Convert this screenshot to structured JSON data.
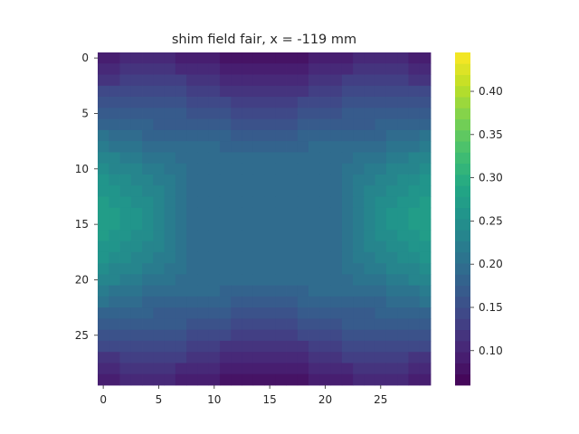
{
  "chart_data": {
    "type": "heatmap",
    "title": "shim field fair, x = -119 mm",
    "xlabel": "",
    "ylabel": "",
    "grid": false,
    "colormap": "viridis",
    "n_rows": 30,
    "n_cols": 30,
    "x_ticks": [
      "0",
      "5",
      "10",
      "15",
      "20",
      "25"
    ],
    "y_ticks": [
      "0",
      "5",
      "10",
      "15",
      "20",
      "25"
    ],
    "colorbar": {
      "range": [
        0.06,
        0.445
      ],
      "levels": 30,
      "ticks": [
        "0.10",
        "0.15",
        "0.20",
        "0.25",
        "0.30",
        "0.35",
        "0.40"
      ],
      "tick_values": [
        0.1,
        0.15,
        0.2,
        0.25,
        0.3,
        0.35,
        0.4
      ]
    },
    "values": [
      [
        0.092,
        0.096,
        0.101,
        0.105,
        0.109,
        0.106,
        0.102,
        0.098,
        0.094,
        0.09,
        0.086,
        0.083,
        0.08,
        0.077,
        0.075,
        0.075,
        0.077,
        0.08,
        0.083,
        0.086,
        0.09,
        0.094,
        0.098,
        0.102,
        0.106,
        0.109,
        0.105,
        0.101,
        0.096,
        0.092
      ],
      [
        0.108,
        0.109,
        0.112,
        0.115,
        0.118,
        0.118,
        0.115,
        0.111,
        0.107,
        0.103,
        0.099,
        0.096,
        0.093,
        0.091,
        0.089,
        0.089,
        0.091,
        0.093,
        0.096,
        0.099,
        0.103,
        0.107,
        0.111,
        0.115,
        0.118,
        0.118,
        0.115,
        0.112,
        0.109,
        0.108
      ],
      [
        0.123,
        0.124,
        0.125,
        0.126,
        0.128,
        0.129,
        0.128,
        0.125,
        0.121,
        0.117,
        0.113,
        0.109,
        0.106,
        0.104,
        0.103,
        0.103,
        0.104,
        0.106,
        0.109,
        0.113,
        0.117,
        0.121,
        0.125,
        0.128,
        0.129,
        0.128,
        0.126,
        0.125,
        0.124,
        0.123
      ],
      [
        0.139,
        0.139,
        0.139,
        0.139,
        0.14,
        0.141,
        0.141,
        0.139,
        0.135,
        0.131,
        0.127,
        0.123,
        0.12,
        0.118,
        0.117,
        0.117,
        0.118,
        0.12,
        0.123,
        0.127,
        0.131,
        0.135,
        0.139,
        0.141,
        0.141,
        0.14,
        0.139,
        0.139,
        0.139,
        0.139
      ],
      [
        0.154,
        0.154,
        0.153,
        0.152,
        0.151,
        0.152,
        0.153,
        0.152,
        0.149,
        0.145,
        0.141,
        0.137,
        0.134,
        0.132,
        0.131,
        0.131,
        0.132,
        0.134,
        0.137,
        0.141,
        0.145,
        0.149,
        0.152,
        0.153,
        0.152,
        0.151,
        0.152,
        0.153,
        0.154,
        0.154
      ],
      [
        0.17,
        0.169,
        0.167,
        0.165,
        0.163,
        0.163,
        0.164,
        0.164,
        0.162,
        0.159,
        0.155,
        0.151,
        0.148,
        0.146,
        0.145,
        0.145,
        0.146,
        0.148,
        0.151,
        0.155,
        0.159,
        0.162,
        0.164,
        0.164,
        0.163,
        0.163,
        0.165,
        0.167,
        0.169,
        0.17
      ],
      [
        0.186,
        0.184,
        0.181,
        0.178,
        0.176,
        0.175,
        0.175,
        0.175,
        0.175,
        0.172,
        0.169,
        0.165,
        0.162,
        0.16,
        0.159,
        0.159,
        0.16,
        0.162,
        0.165,
        0.169,
        0.172,
        0.175,
        0.175,
        0.175,
        0.175,
        0.176,
        0.178,
        0.181,
        0.184,
        0.186
      ],
      [
        0.202,
        0.199,
        0.196,
        0.192,
        0.188,
        0.186,
        0.185,
        0.185,
        0.185,
        0.184,
        0.181,
        0.178,
        0.175,
        0.173,
        0.172,
        0.172,
        0.173,
        0.175,
        0.178,
        0.181,
        0.184,
        0.185,
        0.185,
        0.185,
        0.186,
        0.188,
        0.192,
        0.196,
        0.199,
        0.202
      ],
      [
        0.216,
        0.213,
        0.209,
        0.205,
        0.201,
        0.197,
        0.194,
        0.193,
        0.192,
        0.192,
        0.19,
        0.188,
        0.186,
        0.184,
        0.183,
        0.183,
        0.184,
        0.186,
        0.188,
        0.19,
        0.192,
        0.192,
        0.193,
        0.194,
        0.197,
        0.201,
        0.205,
        0.209,
        0.213,
        0.216
      ],
      [
        0.23,
        0.227,
        0.222,
        0.217,
        0.212,
        0.207,
        0.203,
        0.199,
        0.197,
        0.196,
        0.195,
        0.194,
        0.192,
        0.191,
        0.191,
        0.191,
        0.191,
        0.192,
        0.194,
        0.195,
        0.196,
        0.197,
        0.199,
        0.203,
        0.207,
        0.212,
        0.217,
        0.222,
        0.227,
        0.23
      ],
      [
        0.242,
        0.239,
        0.234,
        0.228,
        0.222,
        0.216,
        0.211,
        0.205,
        0.2,
        0.197,
        0.196,
        0.195,
        0.194,
        0.194,
        0.194,
        0.194,
        0.194,
        0.194,
        0.195,
        0.196,
        0.197,
        0.2,
        0.205,
        0.211,
        0.216,
        0.222,
        0.228,
        0.234,
        0.239,
        0.242
      ],
      [
        0.253,
        0.249,
        0.244,
        0.238,
        0.231,
        0.224,
        0.216,
        0.208,
        0.201,
        0.197,
        0.195,
        0.194,
        0.194,
        0.194,
        0.194,
        0.194,
        0.194,
        0.194,
        0.194,
        0.195,
        0.197,
        0.201,
        0.208,
        0.216,
        0.224,
        0.231,
        0.238,
        0.244,
        0.249,
        0.253
      ],
      [
        0.261,
        0.257,
        0.252,
        0.246,
        0.238,
        0.229,
        0.219,
        0.209,
        0.201,
        0.196,
        0.194,
        0.193,
        0.193,
        0.193,
        0.193,
        0.193,
        0.193,
        0.193,
        0.193,
        0.194,
        0.196,
        0.201,
        0.209,
        0.219,
        0.229,
        0.238,
        0.246,
        0.252,
        0.257,
        0.261
      ],
      [
        0.267,
        0.263,
        0.258,
        0.251,
        0.242,
        0.231,
        0.22,
        0.209,
        0.2,
        0.195,
        0.193,
        0.192,
        0.192,
        0.192,
        0.192,
        0.192,
        0.192,
        0.192,
        0.192,
        0.193,
        0.195,
        0.2,
        0.209,
        0.22,
        0.231,
        0.242,
        0.251,
        0.258,
        0.263,
        0.267
      ],
      [
        0.27,
        0.267,
        0.261,
        0.253,
        0.243,
        0.232,
        0.22,
        0.209,
        0.2,
        0.195,
        0.192,
        0.191,
        0.191,
        0.191,
        0.191,
        0.191,
        0.191,
        0.191,
        0.191,
        0.192,
        0.195,
        0.2,
        0.209,
        0.22,
        0.232,
        0.243,
        0.253,
        0.261,
        0.267,
        0.27
      ],
      [
        0.27,
        0.267,
        0.261,
        0.253,
        0.243,
        0.232,
        0.22,
        0.209,
        0.2,
        0.195,
        0.192,
        0.191,
        0.191,
        0.191,
        0.191,
        0.191,
        0.191,
        0.191,
        0.191,
        0.192,
        0.195,
        0.2,
        0.209,
        0.22,
        0.232,
        0.243,
        0.253,
        0.261,
        0.267,
        0.27
      ],
      [
        0.267,
        0.263,
        0.258,
        0.251,
        0.242,
        0.231,
        0.22,
        0.209,
        0.2,
        0.195,
        0.193,
        0.192,
        0.192,
        0.192,
        0.192,
        0.192,
        0.192,
        0.192,
        0.192,
        0.193,
        0.195,
        0.2,
        0.209,
        0.22,
        0.231,
        0.242,
        0.251,
        0.258,
        0.263,
        0.267
      ],
      [
        0.261,
        0.257,
        0.252,
        0.246,
        0.238,
        0.229,
        0.219,
        0.209,
        0.201,
        0.196,
        0.194,
        0.193,
        0.193,
        0.193,
        0.193,
        0.193,
        0.193,
        0.193,
        0.193,
        0.194,
        0.196,
        0.201,
        0.209,
        0.219,
        0.229,
        0.238,
        0.246,
        0.252,
        0.257,
        0.261
      ],
      [
        0.253,
        0.249,
        0.244,
        0.238,
        0.231,
        0.224,
        0.216,
        0.208,
        0.201,
        0.197,
        0.195,
        0.194,
        0.194,
        0.194,
        0.194,
        0.194,
        0.194,
        0.194,
        0.194,
        0.195,
        0.197,
        0.201,
        0.208,
        0.216,
        0.224,
        0.231,
        0.238,
        0.244,
        0.249,
        0.253
      ],
      [
        0.242,
        0.239,
        0.234,
        0.228,
        0.222,
        0.216,
        0.211,
        0.205,
        0.2,
        0.197,
        0.196,
        0.195,
        0.194,
        0.194,
        0.194,
        0.194,
        0.194,
        0.194,
        0.195,
        0.196,
        0.197,
        0.2,
        0.205,
        0.211,
        0.216,
        0.222,
        0.228,
        0.234,
        0.239,
        0.242
      ],
      [
        0.23,
        0.227,
        0.222,
        0.217,
        0.212,
        0.207,
        0.203,
        0.199,
        0.197,
        0.196,
        0.195,
        0.194,
        0.192,
        0.191,
        0.191,
        0.191,
        0.191,
        0.192,
        0.194,
        0.195,
        0.196,
        0.197,
        0.199,
        0.203,
        0.207,
        0.212,
        0.217,
        0.222,
        0.227,
        0.23
      ],
      [
        0.216,
        0.213,
        0.209,
        0.205,
        0.201,
        0.197,
        0.194,
        0.193,
        0.192,
        0.192,
        0.19,
        0.188,
        0.186,
        0.184,
        0.183,
        0.183,
        0.184,
        0.186,
        0.188,
        0.19,
        0.192,
        0.192,
        0.193,
        0.194,
        0.197,
        0.201,
        0.205,
        0.209,
        0.213,
        0.216
      ],
      [
        0.202,
        0.199,
        0.196,
        0.192,
        0.188,
        0.186,
        0.185,
        0.185,
        0.185,
        0.184,
        0.181,
        0.178,
        0.175,
        0.173,
        0.172,
        0.172,
        0.173,
        0.175,
        0.178,
        0.181,
        0.184,
        0.185,
        0.185,
        0.185,
        0.186,
        0.188,
        0.192,
        0.196,
        0.199,
        0.202
      ],
      [
        0.186,
        0.184,
        0.181,
        0.178,
        0.176,
        0.175,
        0.175,
        0.175,
        0.175,
        0.172,
        0.169,
        0.165,
        0.162,
        0.16,
        0.159,
        0.159,
        0.16,
        0.162,
        0.165,
        0.169,
        0.172,
        0.175,
        0.175,
        0.175,
        0.175,
        0.176,
        0.178,
        0.181,
        0.184,
        0.186
      ],
      [
        0.17,
        0.169,
        0.167,
        0.165,
        0.163,
        0.163,
        0.164,
        0.164,
        0.162,
        0.159,
        0.155,
        0.151,
        0.148,
        0.146,
        0.145,
        0.145,
        0.146,
        0.148,
        0.151,
        0.155,
        0.159,
        0.162,
        0.164,
        0.164,
        0.163,
        0.163,
        0.165,
        0.167,
        0.169,
        0.17
      ],
      [
        0.154,
        0.154,
        0.153,
        0.152,
        0.151,
        0.152,
        0.153,
        0.152,
        0.149,
        0.145,
        0.141,
        0.137,
        0.134,
        0.132,
        0.131,
        0.131,
        0.132,
        0.134,
        0.137,
        0.141,
        0.145,
        0.149,
        0.152,
        0.153,
        0.152,
        0.151,
        0.152,
        0.153,
        0.154,
        0.154
      ],
      [
        0.139,
        0.139,
        0.139,
        0.139,
        0.14,
        0.141,
        0.141,
        0.139,
        0.135,
        0.131,
        0.127,
        0.123,
        0.12,
        0.118,
        0.117,
        0.117,
        0.118,
        0.12,
        0.123,
        0.127,
        0.131,
        0.135,
        0.139,
        0.141,
        0.141,
        0.14,
        0.139,
        0.139,
        0.139,
        0.139
      ],
      [
        0.123,
        0.124,
        0.125,
        0.126,
        0.128,
        0.129,
        0.128,
        0.125,
        0.121,
        0.117,
        0.113,
        0.109,
        0.106,
        0.104,
        0.103,
        0.103,
        0.104,
        0.106,
        0.109,
        0.113,
        0.117,
        0.121,
        0.125,
        0.128,
        0.129,
        0.128,
        0.126,
        0.125,
        0.124,
        0.123
      ],
      [
        0.108,
        0.109,
        0.112,
        0.115,
        0.118,
        0.118,
        0.115,
        0.111,
        0.107,
        0.103,
        0.099,
        0.096,
        0.093,
        0.091,
        0.089,
        0.089,
        0.091,
        0.093,
        0.096,
        0.099,
        0.103,
        0.107,
        0.111,
        0.115,
        0.118,
        0.118,
        0.115,
        0.112,
        0.109,
        0.108
      ],
      [
        0.092,
        0.096,
        0.101,
        0.105,
        0.109,
        0.106,
        0.102,
        0.098,
        0.094,
        0.09,
        0.086,
        0.083,
        0.08,
        0.077,
        0.075,
        0.075,
        0.077,
        0.08,
        0.083,
        0.086,
        0.09,
        0.094,
        0.098,
        0.102,
        0.106,
        0.109,
        0.105,
        0.101,
        0.096,
        0.092
      ]
    ]
  }
}
